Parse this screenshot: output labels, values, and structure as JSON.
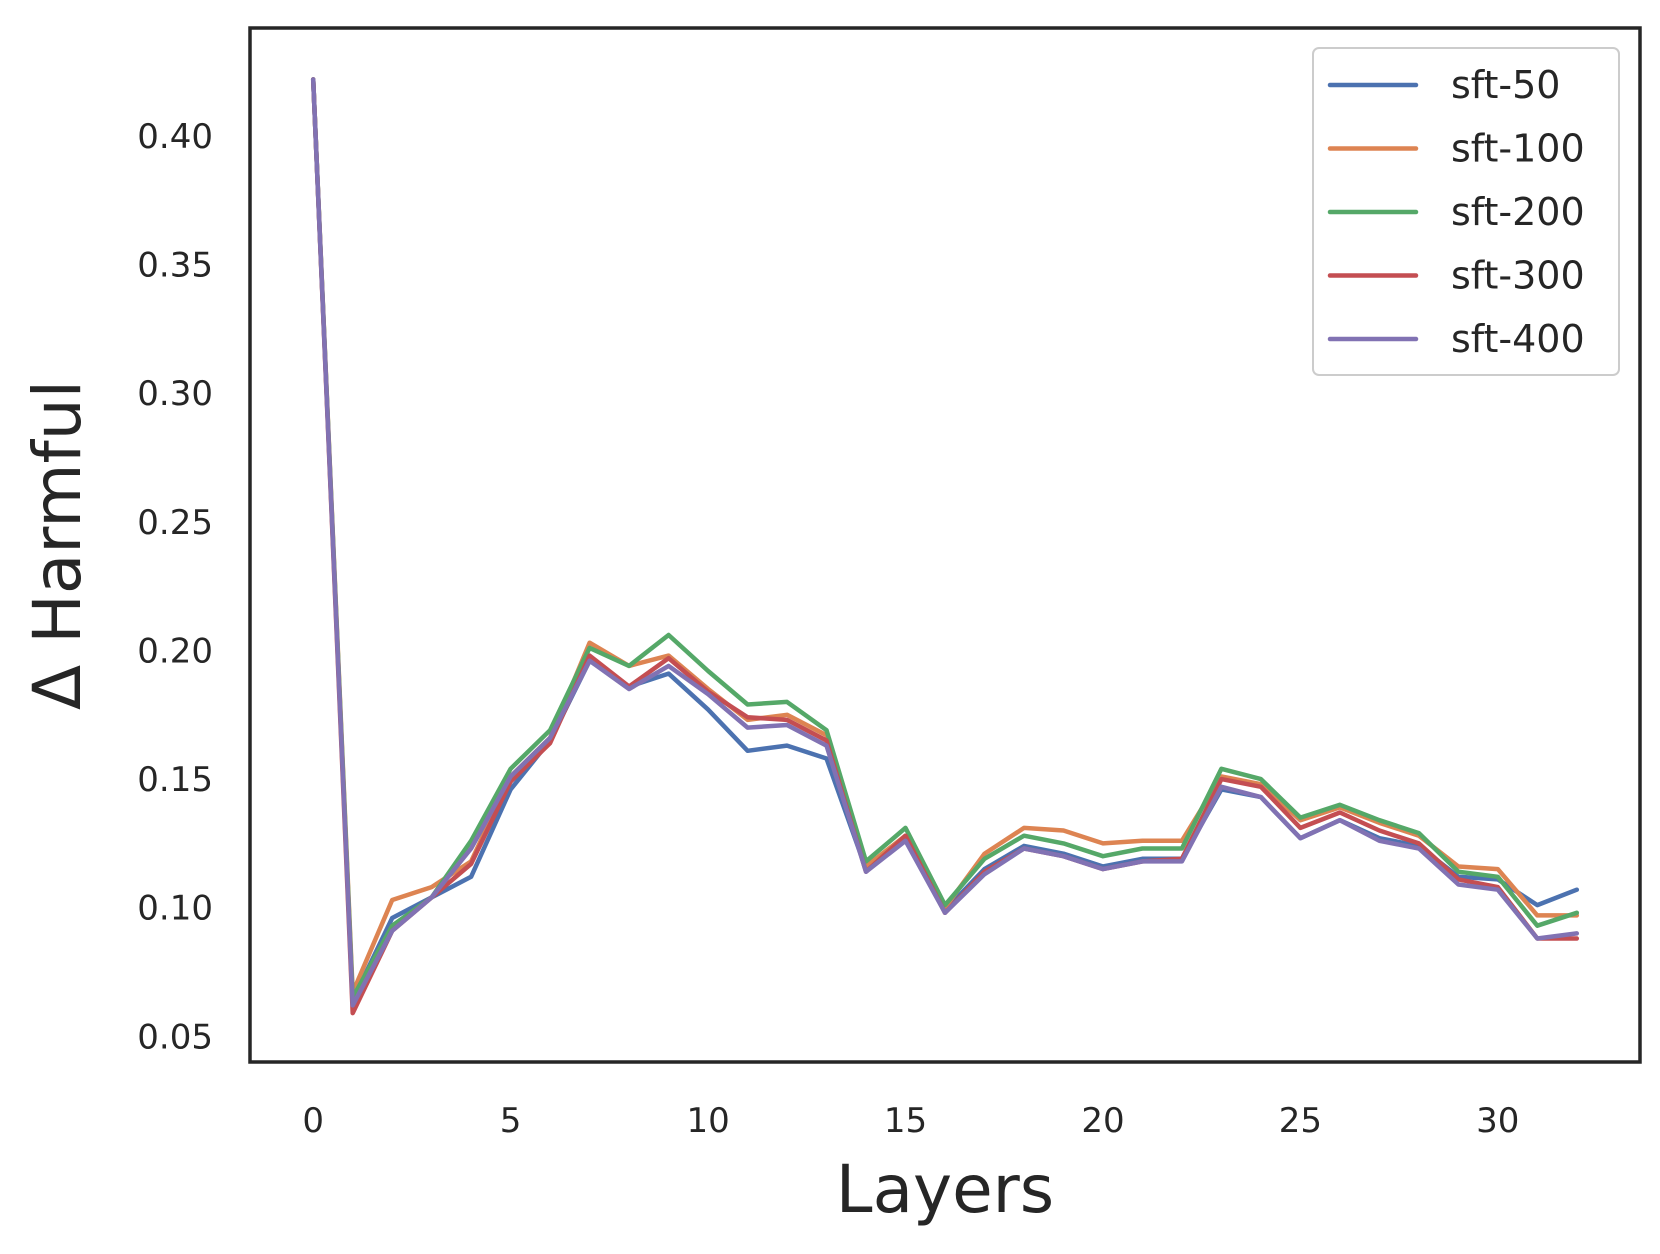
{
  "chart_data": {
    "type": "line",
    "xlabel": "Layers",
    "ylabel": "Δ Harmful",
    "xlim": [
      -1.6,
      33.6
    ],
    "ylim": [
      0.04,
      0.442
    ],
    "xticks": [
      0,
      5,
      10,
      15,
      20,
      25,
      30
    ],
    "yticks": [
      0.05,
      0.1,
      0.15,
      0.2,
      0.25,
      0.3,
      0.35,
      0.4
    ],
    "xtick_labels": [
      "0",
      "5",
      "10",
      "15",
      "20",
      "25",
      "30"
    ],
    "ytick_labels": [
      "0.05",
      "0.10",
      "0.15",
      "0.20",
      "0.25",
      "0.30",
      "0.35",
      "0.40"
    ],
    "grid": false,
    "legend_position": "top-right",
    "x": [
      0,
      1,
      2,
      3,
      4,
      5,
      6,
      7,
      8,
      9,
      10,
      11,
      12,
      13,
      14,
      15,
      16,
      17,
      18,
      19,
      20,
      21,
      22,
      23,
      24,
      25,
      26,
      27,
      28,
      29,
      30,
      31,
      32
    ],
    "series": [
      {
        "name": "sft-50",
        "color": "#4c72b0",
        "values": [
          0.422,
          0.064,
          0.096,
          0.104,
          0.112,
          0.146,
          0.165,
          0.196,
          0.186,
          0.191,
          0.177,
          0.161,
          0.163,
          0.158,
          0.115,
          0.127,
          0.099,
          0.115,
          0.124,
          0.121,
          0.116,
          0.119,
          0.119,
          0.146,
          0.143,
          0.127,
          0.134,
          0.127,
          0.124,
          0.112,
          0.111,
          0.101,
          0.107
        ]
      },
      {
        "name": "sft-100",
        "color": "#dd8452",
        "values": [
          0.422,
          0.067,
          0.103,
          0.108,
          0.118,
          0.151,
          0.166,
          0.203,
          0.194,
          0.198,
          0.185,
          0.173,
          0.175,
          0.167,
          0.116,
          0.128,
          0.1,
          0.121,
          0.131,
          0.13,
          0.125,
          0.126,
          0.126,
          0.151,
          0.148,
          0.134,
          0.139,
          0.133,
          0.128,
          0.116,
          0.115,
          0.097,
          0.097
        ]
      },
      {
        "name": "sft-200",
        "color": "#55a868",
        "values": [
          0.422,
          0.065,
          0.093,
          0.104,
          0.126,
          0.154,
          0.169,
          0.201,
          0.194,
          0.206,
          0.192,
          0.179,
          0.18,
          0.169,
          0.118,
          0.131,
          0.101,
          0.119,
          0.128,
          0.125,
          0.12,
          0.123,
          0.123,
          0.154,
          0.15,
          0.135,
          0.14,
          0.134,
          0.129,
          0.114,
          0.112,
          0.093,
          0.098
        ]
      },
      {
        "name": "sft-300",
        "color": "#c44e52",
        "values": [
          0.422,
          0.059,
          0.091,
          0.104,
          0.117,
          0.149,
          0.164,
          0.198,
          0.186,
          0.197,
          0.184,
          0.174,
          0.173,
          0.165,
          0.114,
          0.128,
          0.098,
          0.114,
          0.123,
          0.12,
          0.115,
          0.118,
          0.119,
          0.15,
          0.147,
          0.131,
          0.137,
          0.13,
          0.125,
          0.111,
          0.108,
          0.088,
          0.088
        ]
      },
      {
        "name": "sft-400",
        "color": "#8172b3",
        "values": [
          0.422,
          0.062,
          0.091,
          0.104,
          0.123,
          0.151,
          0.166,
          0.196,
          0.185,
          0.194,
          0.183,
          0.17,
          0.171,
          0.163,
          0.114,
          0.126,
          0.098,
          0.113,
          0.123,
          0.12,
          0.115,
          0.118,
          0.118,
          0.147,
          0.143,
          0.127,
          0.134,
          0.126,
          0.123,
          0.109,
          0.107,
          0.088,
          0.09
        ]
      }
    ]
  }
}
